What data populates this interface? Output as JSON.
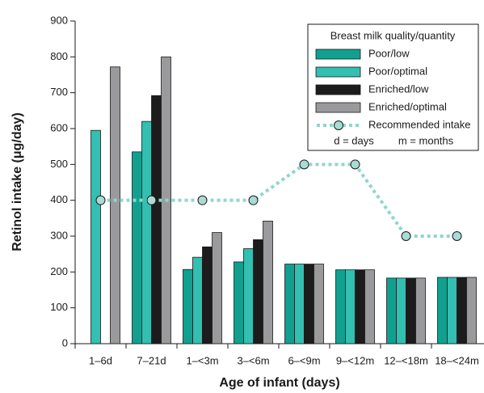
{
  "chart_data": {
    "type": "bar",
    "x_label": "Age of infant (days)",
    "y_label": "Retinol intake (μg/day)",
    "categories": [
      "1–6d",
      "7–21d",
      "1–<3m",
      "3–<6m",
      "6–<9m",
      "9–<12m",
      "12–<18m",
      "18–<24m"
    ],
    "series": [
      {
        "name": "Poor/low",
        "color": "#11a08f",
        "values": [
          null,
          535,
          207,
          228,
          222,
          206,
          183,
          185
        ]
      },
      {
        "name": "Poor/optimal",
        "color": "#33bfb1",
        "values": [
          595,
          620,
          241,
          265,
          222,
          206,
          183,
          185
        ]
      },
      {
        "name": "Enriched/low",
        "color": "#1c1c1c",
        "values": [
          null,
          692,
          270,
          290,
          222,
          206,
          183,
          185
        ]
      },
      {
        "name": "Enriched/optimal",
        "color": "#9a9a9c",
        "values": [
          772,
          800,
          310,
          342,
          222,
          206,
          183,
          185
        ]
      },
      {
        "name": "Recommended intake",
        "type": "line",
        "color": "#8fd6cd",
        "values": [
          400,
          400,
          400,
          400,
          500,
          500,
          300,
          300
        ]
      }
    ],
    "legend_title": "Breast milk quality/quantity",
    "legend_notes": [
      "d = days",
      "m = months"
    ],
    "ylim": [
      0,
      900
    ],
    "yticks": [
      0,
      100,
      200,
      300,
      400,
      500,
      600,
      700,
      800,
      900
    ]
  }
}
